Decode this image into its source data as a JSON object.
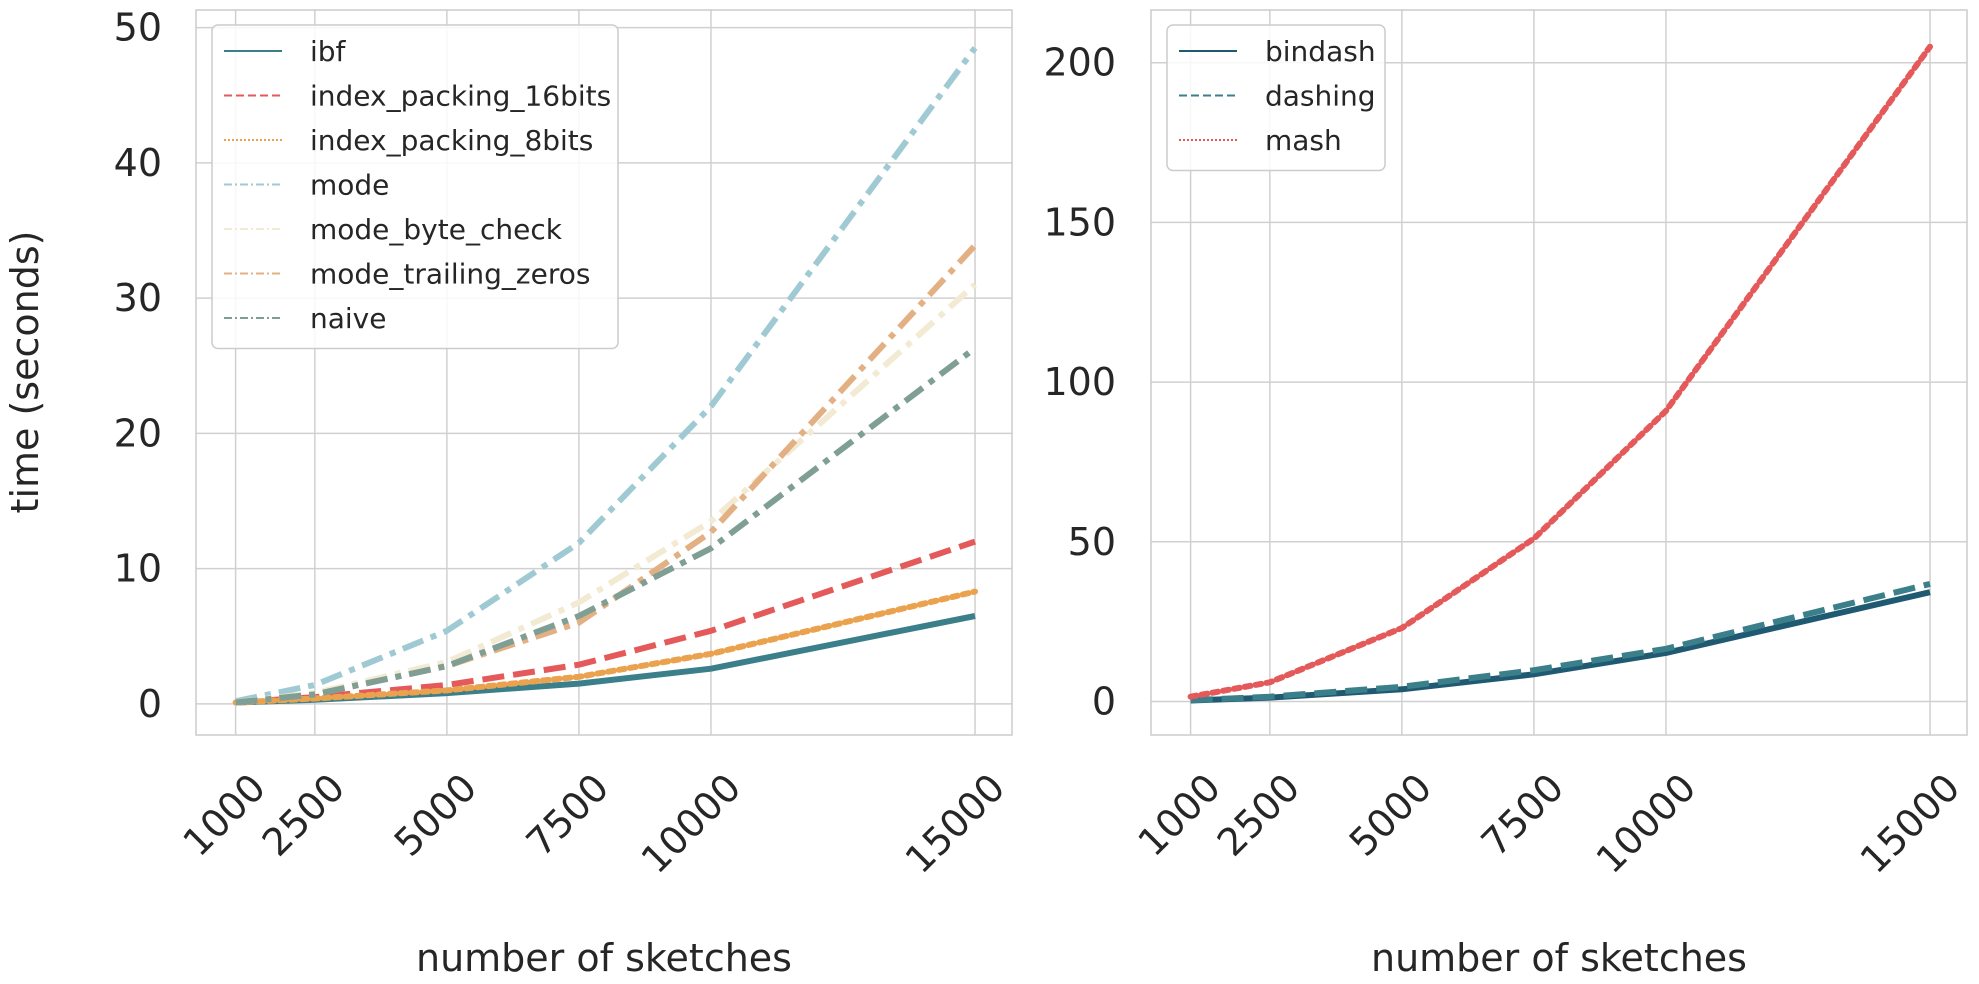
{
  "chart_data": [
    {
      "type": "line",
      "x": [
        1000,
        2500,
        5000,
        7500,
        10000,
        15000
      ],
      "xticks": [
        "1000",
        "2500",
        "5000",
        "7500",
        "10000",
        "15000"
      ],
      "xlim": [
        250,
        15700
      ],
      "ylim": [
        -2.3,
        51.3
      ],
      "yticks": [
        "0",
        "10",
        "20",
        "30",
        "40",
        "50"
      ],
      "xlabel": "number of sketches",
      "ylabel": "time (seconds)",
      "grid": true,
      "legend_position": "top-left",
      "series": [
        {
          "name": "ibf",
          "color": "#3a7f8a",
          "style": "solid",
          "values": [
            0.1,
            0.3,
            0.8,
            1.5,
            2.6,
            6.5
          ]
        },
        {
          "name": "index_packing_16bits",
          "color": "#e45a5a",
          "style": "dashed",
          "values": [
            0.1,
            0.5,
            1.4,
            2.9,
            5.4,
            12.0
          ]
        },
        {
          "name": "index_packing_8bits",
          "color": "#eaa24e",
          "style": "dotted",
          "values": [
            0.1,
            0.4,
            1.0,
            2.0,
            3.7,
            8.3
          ]
        },
        {
          "name": "mode",
          "color": "#9fcad3",
          "style": "dashdot",
          "values": [
            0.2,
            1.4,
            5.4,
            11.9,
            22.0,
            48.5
          ]
        },
        {
          "name": "mode_byte_check",
          "color": "#f2ead2",
          "style": "dashdot",
          "values": [
            0.1,
            0.8,
            3.1,
            7.5,
            13.5,
            31.0
          ]
        },
        {
          "name": "mode_trailing_zeros",
          "color": "#e3b083",
          "style": "dashdot",
          "values": [
            0.1,
            0.7,
            2.8,
            6.0,
            12.7,
            33.9
          ]
        },
        {
          "name": "naive",
          "color": "#7f9e94",
          "style": "dashdot",
          "values": [
            0.1,
            0.7,
            2.8,
            6.5,
            11.5,
            26.3
          ]
        }
      ]
    },
    {
      "type": "line",
      "x": [
        1000,
        2500,
        5000,
        7500,
        10000,
        15000
      ],
      "xticks": [
        "1000",
        "2500",
        "5000",
        "7500",
        "10000",
        "15000"
      ],
      "xlim": [
        250,
        15700
      ],
      "ylim": [
        -10.5,
        216.5
      ],
      "yticks": [
        "0",
        "50",
        "100",
        "150",
        "200"
      ],
      "xlabel": "number of sketches",
      "ylabel": "",
      "grid": true,
      "legend_position": "top-left",
      "series": [
        {
          "name": "bindash",
          "color": "#1f5a72",
          "style": "solid",
          "values": [
            0.3,
            1.2,
            3.8,
            8.5,
            15.2,
            34.2
          ]
        },
        {
          "name": "dashing",
          "color": "#3a7f8a",
          "style": "dashed",
          "values": [
            0.4,
            1.5,
            4.6,
            9.8,
            16.5,
            36.8
          ]
        },
        {
          "name": "mash",
          "color": "#e45a5a",
          "style": "dotted",
          "values": [
            1.5,
            6.0,
            23.0,
            51.0,
            91.0,
            205.0
          ]
        }
      ]
    }
  ]
}
